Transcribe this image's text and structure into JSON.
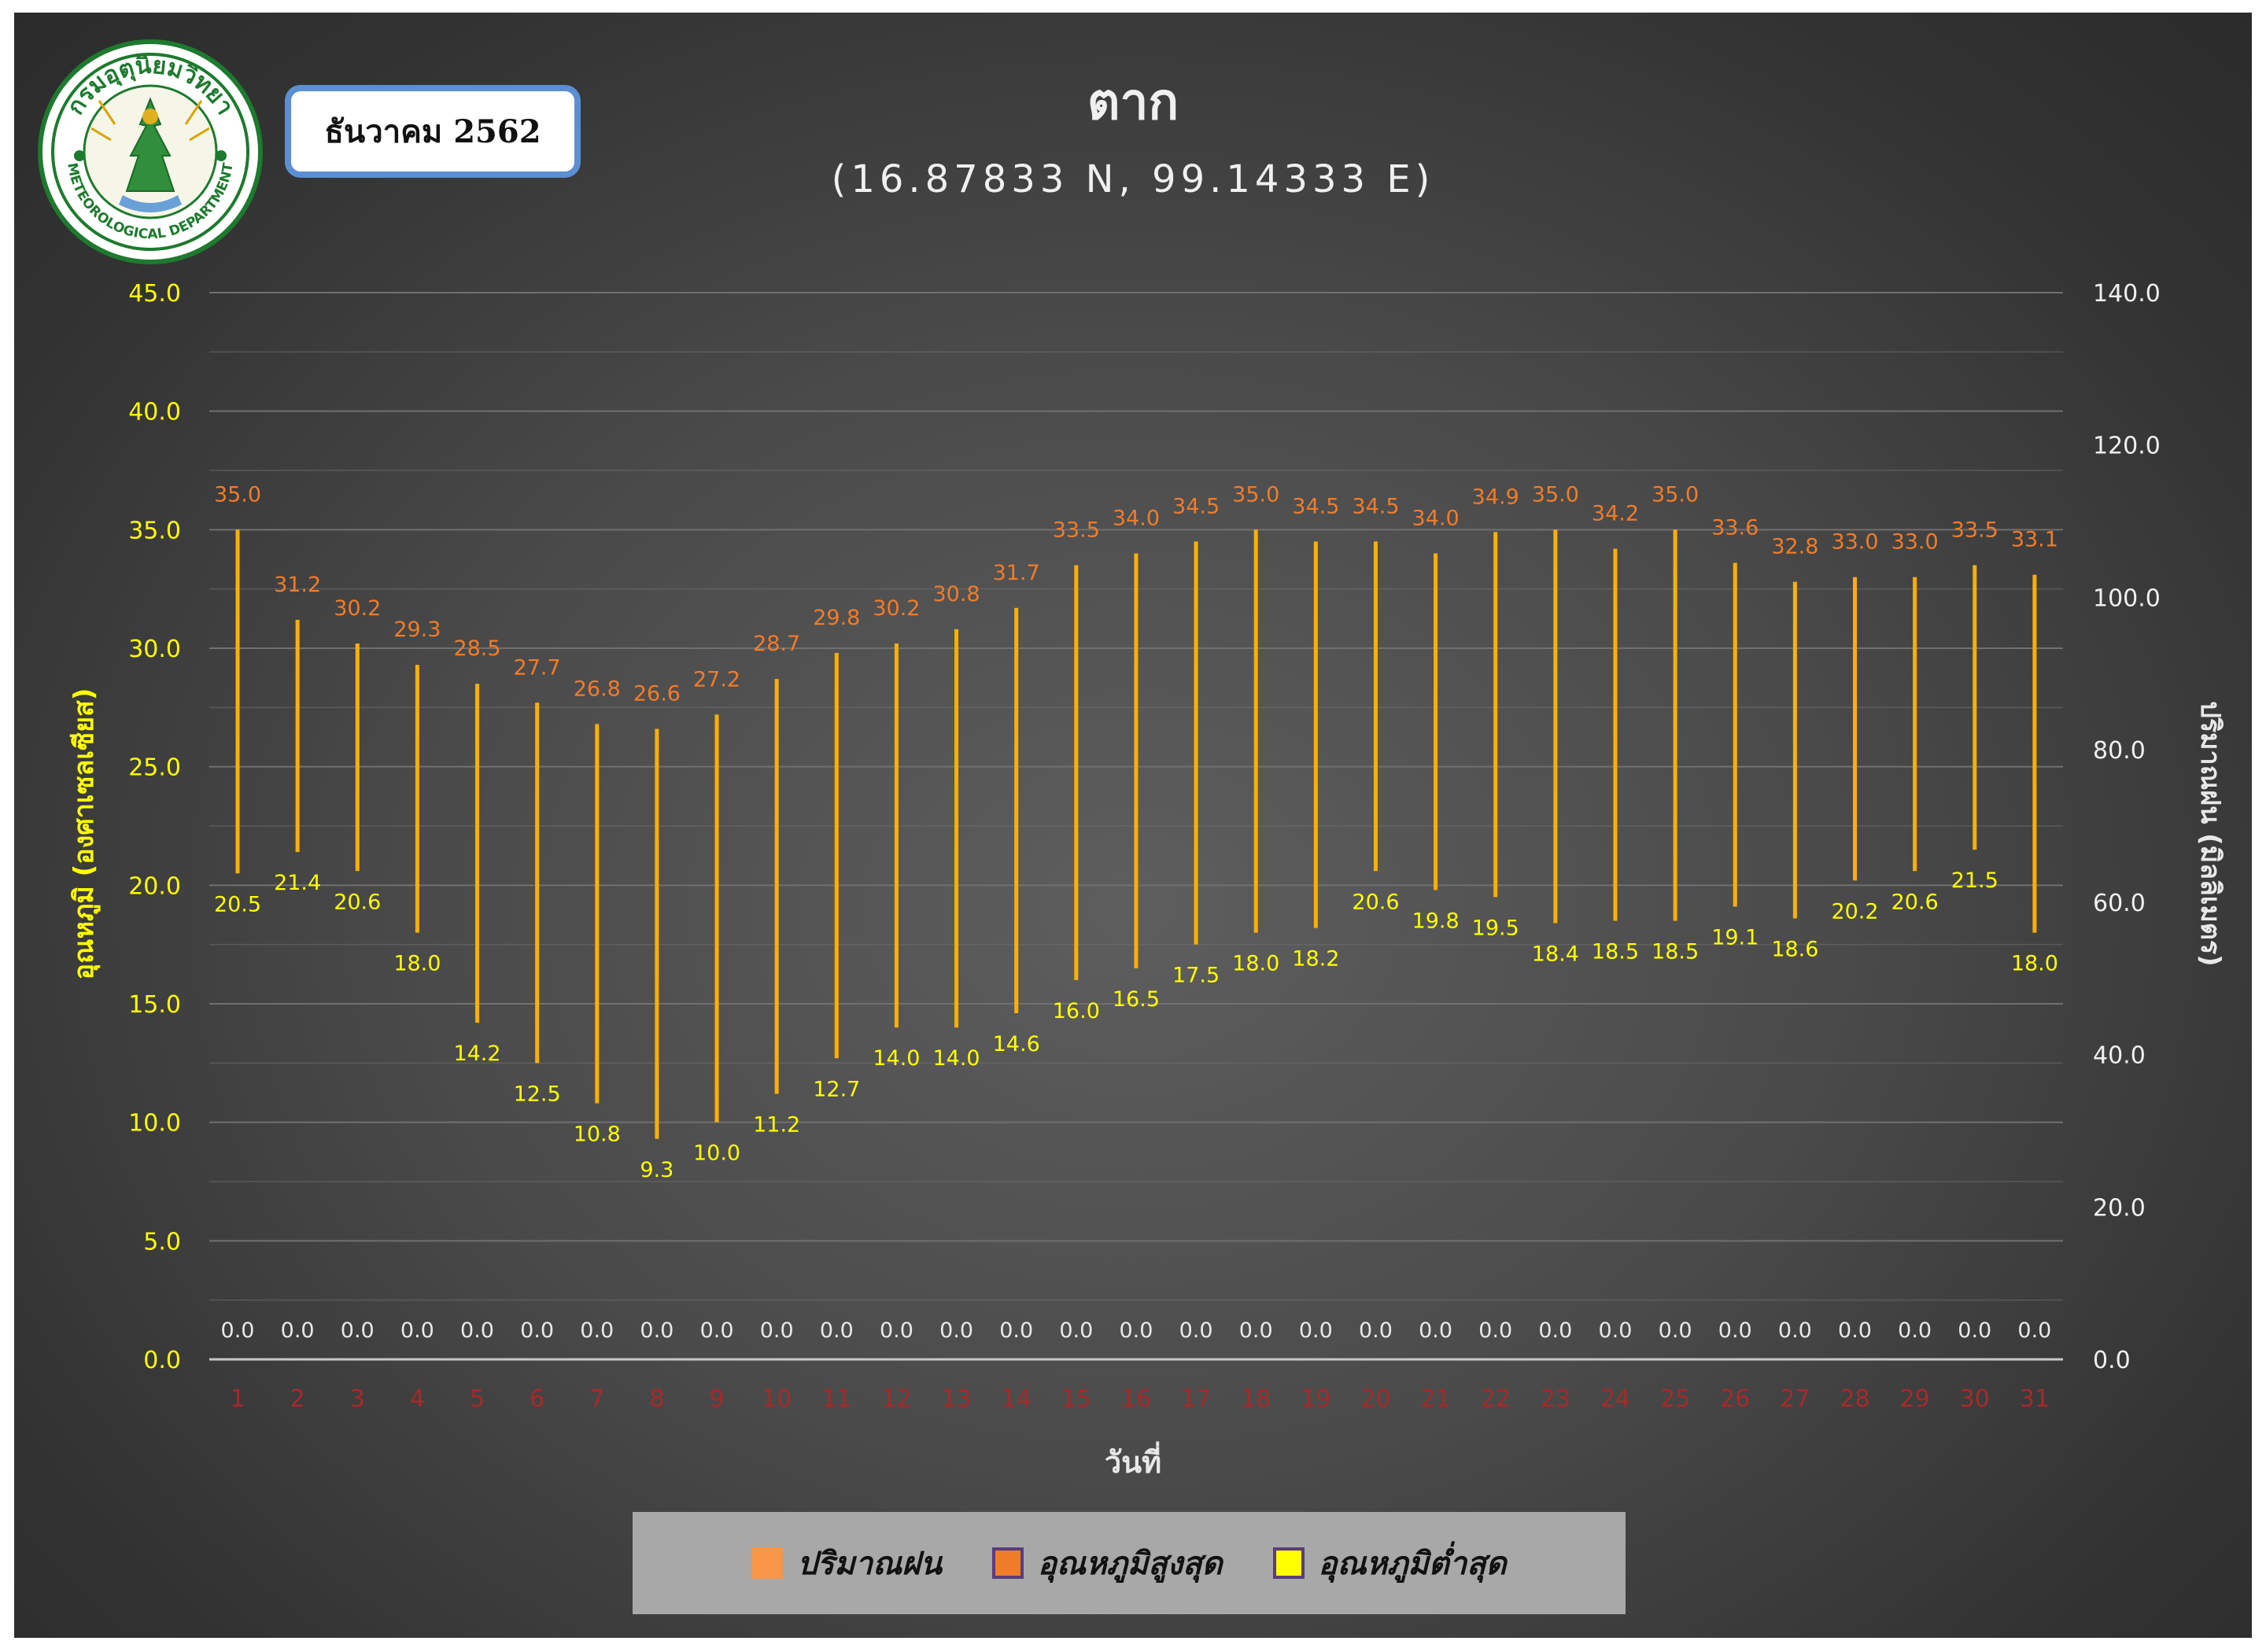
{
  "header": {
    "title": "ตาก",
    "coordinates": "(16.87833 N, 99.14333 E)",
    "month_label": "ธันวาคม 2562"
  },
  "logo": {
    "org_thai": "กรมอุตุนิยมวิทยา",
    "org_english": "METEOROLOGICAL DEPARTMENT"
  },
  "colors": {
    "background": "#3f3f3f",
    "left_axis_text": "#ffff00",
    "x_tick_text": "#a52a2a",
    "max_label": "#f07c2a",
    "min_label": "#ffff00",
    "bar_line": "#ffb000",
    "rain_label": "#e8e8e8",
    "grid": "#707070"
  },
  "legend": {
    "items": [
      {
        "label": "ปริมาณฝน",
        "color": "#f79646",
        "border": "#f79646"
      },
      {
        "label": "อุณหภูมิสูงสุด",
        "color": "#f07c2a",
        "border": "#5a3d7a"
      },
      {
        "label": "อุณหภูมิต่ำสุด",
        "color": "#ffff00",
        "border": "#5a3d7a"
      }
    ]
  },
  "chart_data": {
    "type": "bar",
    "xlabel": "วันที่",
    "ylabel": "อุณหภูมิ (องศาเซลเซียส)",
    "y2label": "ปริมาณฝน (มิลลิเมตร)",
    "ylim": [
      0,
      45
    ],
    "y2lim": [
      0,
      140
    ],
    "yticks": [
      "0.0",
      "5.0",
      "10.0",
      "15.0",
      "20.0",
      "25.0",
      "30.0",
      "35.0",
      "40.0",
      "45.0"
    ],
    "y2ticks": [
      "0.0",
      "20.0",
      "40.0",
      "60.0",
      "80.0",
      "100.0",
      "120.0",
      "140.0"
    ],
    "grid": true,
    "legend_position": "bottom",
    "categories": [
      "1",
      "2",
      "3",
      "4",
      "5",
      "6",
      "7",
      "8",
      "9",
      "10",
      "11",
      "12",
      "13",
      "14",
      "15",
      "16",
      "17",
      "18",
      "19",
      "20",
      "21",
      "22",
      "23",
      "24",
      "25",
      "26",
      "27",
      "28",
      "29",
      "30",
      "31"
    ],
    "series": [
      {
        "name": "ปริมาณฝน",
        "axis": "right",
        "values": [
          0,
          0,
          0,
          0,
          0,
          0,
          0,
          0,
          0,
          0,
          0,
          0,
          0,
          0,
          0,
          0,
          0,
          0,
          0,
          0,
          0,
          0,
          0,
          0,
          0,
          0,
          0,
          0,
          0,
          0,
          0
        ],
        "labels": [
          "0.0",
          "0.0",
          "0.0",
          "0.0",
          "0.0",
          "0.0",
          "0.0",
          "0.0",
          "0.0",
          "0.0",
          "0.0",
          "0.0",
          "0.0",
          "0.0",
          "0.0",
          "0.0",
          "0.0",
          "0.0",
          "0.0",
          "0.0",
          "0.0",
          "0.0",
          "0.0",
          "0.0",
          "0.0",
          "0.0",
          "0.0",
          "0.0",
          "0.0",
          "0.0",
          "0.0"
        ]
      },
      {
        "name": "อุณหภูมิสูงสุด",
        "axis": "left",
        "values": [
          35.0,
          31.2,
          30.2,
          29.3,
          28.5,
          27.7,
          26.8,
          26.6,
          27.2,
          28.7,
          29.8,
          30.2,
          30.8,
          31.7,
          33.5,
          34.0,
          34.5,
          35.0,
          34.5,
          34.5,
          34.0,
          34.9,
          35.0,
          34.2,
          35.0,
          33.6,
          32.8,
          33.0,
          33.0,
          33.5,
          33.1
        ],
        "labels": [
          "35.0",
          "31.2",
          "30.2",
          "29.3",
          "28.5",
          "27.7",
          "26.8",
          "26.6",
          "27.2",
          "28.7",
          "29.8",
          "30.2",
          "30.8",
          "31.7",
          "33.5",
          "34.0",
          "34.5",
          "35.0",
          "34.5",
          "34.5",
          "34.0",
          "34.9",
          "35.0",
          "34.2",
          "35.0",
          "33.6",
          "32.8",
          "33.0",
          "33.0",
          "33.5",
          "33.1"
        ]
      },
      {
        "name": "อุณหภูมิต่ำสุด",
        "axis": "left",
        "values": [
          20.5,
          21.4,
          20.6,
          18.0,
          14.2,
          12.5,
          10.8,
          9.3,
          10.0,
          11.2,
          12.7,
          14.0,
          14.0,
          14.6,
          16.0,
          16.5,
          17.5,
          18.0,
          18.2,
          20.6,
          19.8,
          19.5,
          18.4,
          18.5,
          18.5,
          19.1,
          18.6,
          20.2,
          20.6,
          21.5,
          18.0
        ],
        "labels": [
          "20.5",
          "21.4",
          "20.6",
          "18.0",
          "14.2",
          "12.5",
          "10.8",
          "9.3",
          "10.0",
          "11.2",
          "12.7",
          "14.0",
          "14.0",
          "14.6",
          "16.0",
          "16.5",
          "17.5",
          "18.0",
          "18.2",
          "20.6",
          "19.8",
          "19.5",
          "18.4",
          "18.5",
          "18.5",
          "19.1",
          "18.6",
          "20.2",
          "20.6",
          "21.5",
          "18.0"
        ]
      }
    ]
  }
}
